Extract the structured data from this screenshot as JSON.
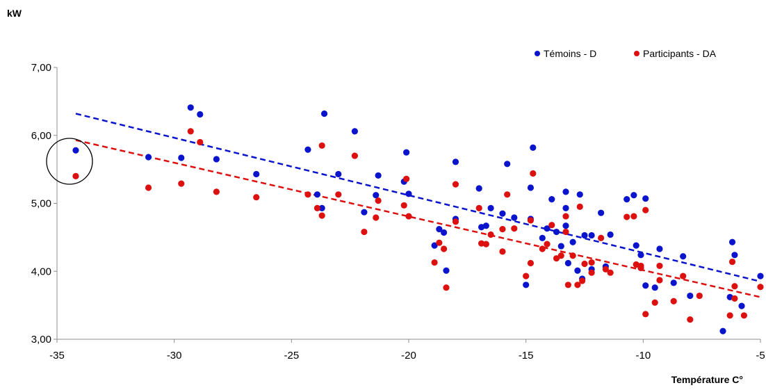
{
  "chart_data": {
    "type": "scatter",
    "title": "",
    "xlabel": "Température C°",
    "ylabel": "kW",
    "xlim": [
      -35,
      -5
    ],
    "ylim": [
      3,
      7
    ],
    "x_ticks": [
      "-35",
      "-30",
      "-25",
      "-20",
      "-15",
      "-10",
      "-5"
    ],
    "y_ticks": [
      "3,00",
      "4,00",
      "5,00",
      "6,00",
      "7,00"
    ],
    "grid": false,
    "legend_position": "top-right",
    "series": [
      {
        "name": "Témoins - D",
        "color": "#0A14CC",
        "trendline": {
          "style": "dashed",
          "points": [
            [
              -34.2,
              6.32
            ],
            [
              -5,
              3.85
            ]
          ]
        },
        "points": [
          [
            -34.2,
            5.78
          ],
          [
            -31.1,
            5.68
          ],
          [
            -29.7,
            5.67
          ],
          [
            -29.3,
            6.41
          ],
          [
            -28.9,
            6.31
          ],
          [
            -28.2,
            5.65
          ],
          [
            -26.5,
            5.43
          ],
          [
            -24.3,
            5.79
          ],
          [
            -23.9,
            5.13
          ],
          [
            -23.7,
            4.93
          ],
          [
            -23.6,
            6.32
          ],
          [
            -23.0,
            5.43
          ],
          [
            -22.3,
            6.06
          ],
          [
            -21.9,
            4.87
          ],
          [
            -21.4,
            5.12
          ],
          [
            -21.3,
            5.41
          ],
          [
            -20.1,
            5.75
          ],
          [
            -20.0,
            5.14
          ],
          [
            -20.2,
            5.32
          ],
          [
            -18.9,
            4.38
          ],
          [
            -18.7,
            4.62
          ],
          [
            -18.4,
            4.01
          ],
          [
            -18.5,
            4.57
          ],
          [
            -18.0,
            5.61
          ],
          [
            -18.0,
            4.77
          ],
          [
            -17.0,
            5.22
          ],
          [
            -16.9,
            4.65
          ],
          [
            -16.7,
            4.67
          ],
          [
            -16.5,
            4.93
          ],
          [
            -16.0,
            4.85
          ],
          [
            -15.8,
            5.58
          ],
          [
            -15.5,
            4.79
          ],
          [
            -15.0,
            3.8
          ],
          [
            -14.8,
            4.77
          ],
          [
            -14.7,
            5.82
          ],
          [
            -14.8,
            5.23
          ],
          [
            -14.3,
            4.49
          ],
          [
            -14.1,
            4.63
          ],
          [
            -13.9,
            5.06
          ],
          [
            -13.7,
            4.58
          ],
          [
            -13.5,
            4.37
          ],
          [
            -13.3,
            5.17
          ],
          [
            -13.3,
            4.93
          ],
          [
            -13.3,
            4.67
          ],
          [
            -13.2,
            4.12
          ],
          [
            -13.0,
            4.43
          ],
          [
            -12.8,
            4.01
          ],
          [
            -12.7,
            5.13
          ],
          [
            -12.6,
            3.89
          ],
          [
            -12.5,
            4.53
          ],
          [
            -12.2,
            4.53
          ],
          [
            -12.2,
            4.03
          ],
          [
            -11.8,
            4.86
          ],
          [
            -11.6,
            4.07
          ],
          [
            -11.4,
            4.54
          ],
          [
            -10.7,
            5.06
          ],
          [
            -10.4,
            5.12
          ],
          [
            -10.3,
            4.38
          ],
          [
            -10.1,
            4.24
          ],
          [
            -10.1,
            4.05
          ],
          [
            -9.9,
            5.07
          ],
          [
            -9.9,
            3.79
          ],
          [
            -9.5,
            3.76
          ],
          [
            -9.3,
            4.33
          ],
          [
            -8.7,
            3.83
          ],
          [
            -8.3,
            4.22
          ],
          [
            -8.0,
            3.64
          ],
          [
            -6.6,
            3.12
          ],
          [
            -6.3,
            3.62
          ],
          [
            -6.2,
            4.43
          ],
          [
            -6.1,
            4.24
          ],
          [
            -5.8,
            3.49
          ],
          [
            -5.0,
            3.93
          ]
        ]
      },
      {
        "name": "Participants - DA",
        "color": "#DD1010",
        "trendline": {
          "style": "dashed",
          "points": [
            [
              -34.2,
              5.93
            ],
            [
              -5,
              3.62
            ]
          ]
        },
        "points": [
          [
            -34.2,
            5.4
          ],
          [
            -31.1,
            5.23
          ],
          [
            -29.7,
            5.29
          ],
          [
            -29.3,
            6.06
          ],
          [
            -28.9,
            5.9
          ],
          [
            -28.2,
            5.17
          ],
          [
            -26.5,
            5.09
          ],
          [
            -24.3,
            5.13
          ],
          [
            -23.9,
            4.93
          ],
          [
            -23.7,
            4.82
          ],
          [
            -23.7,
            5.85
          ],
          [
            -23.0,
            5.13
          ],
          [
            -22.3,
            5.7
          ],
          [
            -21.9,
            4.58
          ],
          [
            -21.4,
            4.79
          ],
          [
            -21.3,
            5.04
          ],
          [
            -20.1,
            5.36
          ],
          [
            -20.0,
            4.81
          ],
          [
            -20.2,
            4.97
          ],
          [
            -18.9,
            4.13
          ],
          [
            -18.7,
            4.42
          ],
          [
            -18.4,
            3.76
          ],
          [
            -18.5,
            4.33
          ],
          [
            -18.0,
            5.28
          ],
          [
            -18.0,
            4.73
          ],
          [
            -17.0,
            4.93
          ],
          [
            -16.9,
            4.41
          ],
          [
            -16.7,
            4.4
          ],
          [
            -16.5,
            4.54
          ],
          [
            -16.0,
            4.29
          ],
          [
            -16.0,
            4.62
          ],
          [
            -15.8,
            5.13
          ],
          [
            -15.5,
            4.63
          ],
          [
            -15.0,
            3.93
          ],
          [
            -14.8,
            4.75
          ],
          [
            -14.7,
            5.44
          ],
          [
            -14.8,
            4.12
          ],
          [
            -14.3,
            4.33
          ],
          [
            -14.1,
            4.4
          ],
          [
            -13.9,
            4.68
          ],
          [
            -13.7,
            4.19
          ],
          [
            -13.5,
            4.23
          ],
          [
            -13.3,
            4.81
          ],
          [
            -13.3,
            4.58
          ],
          [
            -13.2,
            3.8
          ],
          [
            -13.0,
            4.23
          ],
          [
            -12.8,
            3.8
          ],
          [
            -12.7,
            4.95
          ],
          [
            -12.6,
            3.86
          ],
          [
            -12.5,
            4.11
          ],
          [
            -12.2,
            4.13
          ],
          [
            -12.2,
            3.98
          ],
          [
            -11.8,
            4.49
          ],
          [
            -11.6,
            4.03
          ],
          [
            -11.4,
            3.98
          ],
          [
            -10.7,
            4.8
          ],
          [
            -10.4,
            4.81
          ],
          [
            -10.3,
            4.1
          ],
          [
            -10.1,
            4.08
          ],
          [
            -10.1,
            4.05
          ],
          [
            -9.9,
            4.9
          ],
          [
            -9.9,
            3.37
          ],
          [
            -9.5,
            3.54
          ],
          [
            -9.3,
            3.87
          ],
          [
            -9.3,
            4.08
          ],
          [
            -8.7,
            3.56
          ],
          [
            -8.3,
            3.93
          ],
          [
            -8.0,
            3.29
          ],
          [
            -7.6,
            3.64
          ],
          [
            -6.3,
            3.35
          ],
          [
            -6.2,
            4.14
          ],
          [
            -6.1,
            3.78
          ],
          [
            -6.1,
            3.6
          ],
          [
            -5.7,
            3.35
          ],
          [
            -5.0,
            3.77
          ]
        ]
      }
    ]
  }
}
